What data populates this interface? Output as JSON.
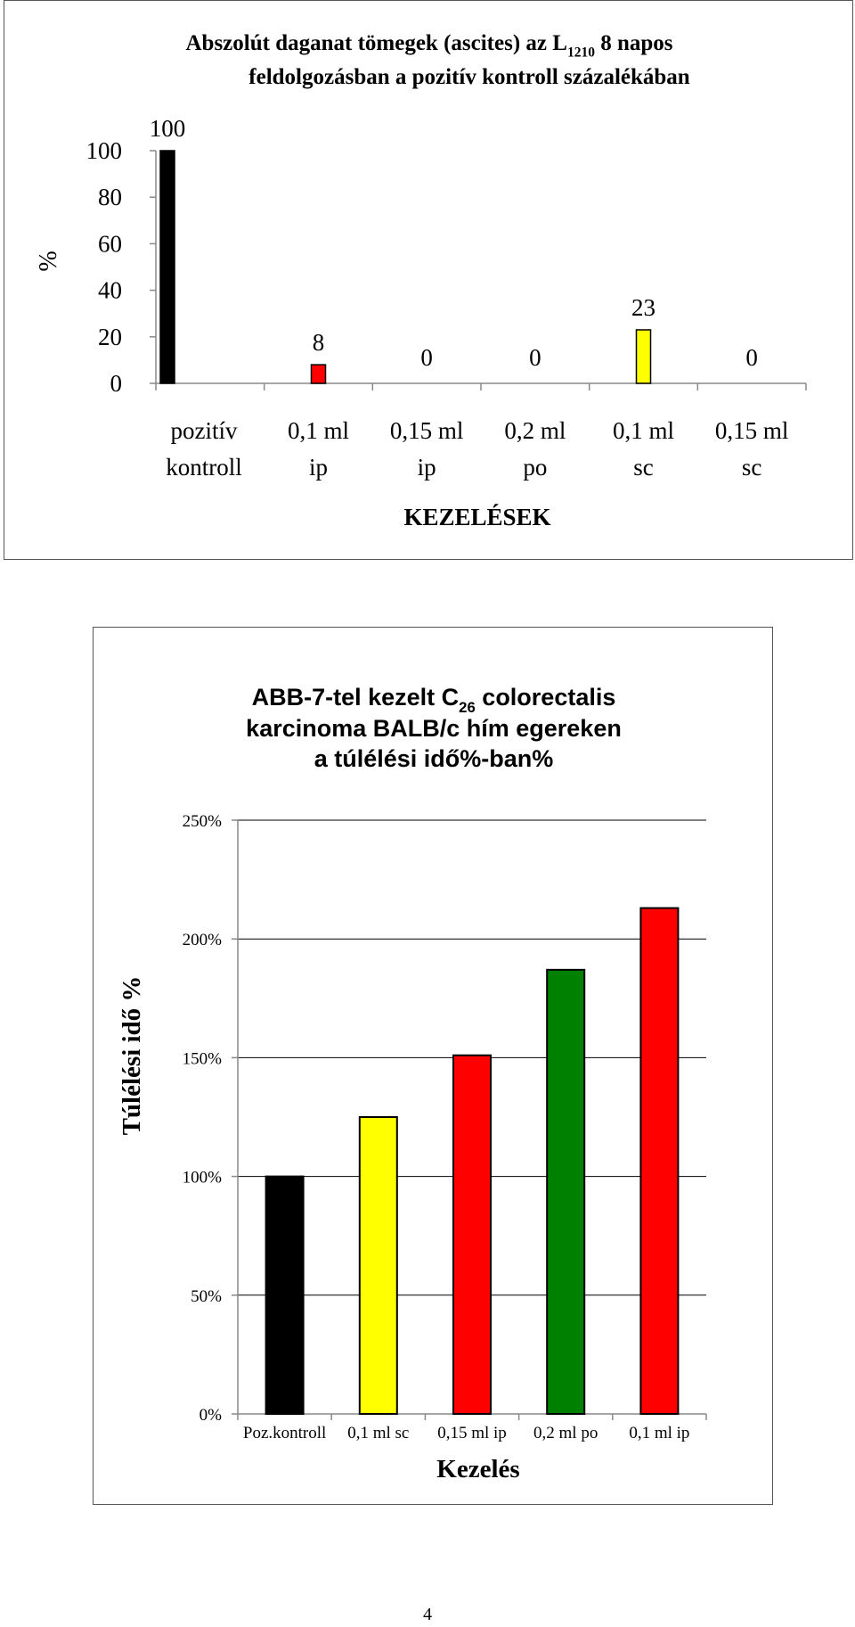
{
  "chart_data": [
    {
      "type": "bar",
      "title_line1_pre": "Abszolút daganat tömegek (ascites)  az L",
      "title_line1_sub": "1210",
      "title_line1_post": " 8 napos",
      "title_line2": "feldolgozásban a pozitív kontroll százalékában",
      "ylabel": "%",
      "xlabel": "KEZELÉSEK",
      "ylim": [
        0,
        100
      ],
      "yticks": [
        "0",
        "20",
        "40",
        "60",
        "80",
        "100"
      ],
      "categories": [
        [
          "pozitív",
          "kontroll"
        ],
        [
          "0,1 ml",
          "ip"
        ],
        [
          "0,15 ml",
          "ip"
        ],
        [
          "0,2 ml",
          "po"
        ],
        [
          "0,1 ml",
          "sc"
        ],
        [
          "0,15 ml",
          "sc"
        ]
      ],
      "values": [
        100,
        8,
        0,
        0,
        23,
        0
      ],
      "value_labels": [
        "100",
        "8",
        "0",
        "0",
        "23",
        "0"
      ],
      "colors": [
        "#000000",
        "#ff0000",
        "#ff0000",
        "#ff0000",
        "#ffff00",
        "#ff0000"
      ],
      "grid": false,
      "legend": "none"
    },
    {
      "type": "bar",
      "title_line1_pre": "ABB-7-tel kezelt C",
      "title_line1_sub": "26",
      "title_line1_post": " colorectalis",
      "title_line2": "karcinoma BALB/c hím egereken",
      "title_line3": "a túlélési idő%-ban%",
      "ylabel": "Túlélési idő %",
      "xlabel": "Kezelés",
      "ylim": [
        0,
        250
      ],
      "yticks": [
        "0%",
        "50%",
        "100%",
        "150%",
        "200%",
        "250%"
      ],
      "categories": [
        "Poz.kontroll",
        "0,1 ml sc",
        "0,15 ml ip",
        "0,2 ml po",
        "0,1 ml ip"
      ],
      "values": [
        100,
        125,
        151,
        187,
        213
      ],
      "colors": [
        "#000000",
        "#ffff00",
        "#ff0000",
        "#008000",
        "#ff0000"
      ],
      "grid": true,
      "legend": "none"
    }
  ],
  "page_number": "4"
}
